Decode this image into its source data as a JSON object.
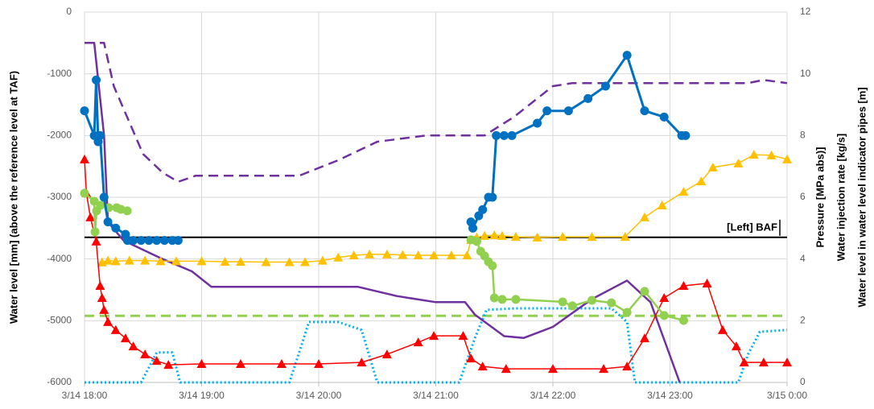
{
  "chart_data": {
    "type": "line",
    "y_label": "Water level [mm] (above the reference level at TAF)",
    "y2_labels": [
      "Pressure [MPa abs)]",
      "Water injection rate [kg/s]",
      "Water level in water level indicator pipes [m]"
    ],
    "annotations": [
      "[Left] BAF"
    ],
    "xlim": [
      0,
      360
    ],
    "xticks": [
      {
        "value": 0,
        "label": "3/14 18:00"
      },
      {
        "value": 60,
        "label": "3/14 19:00"
      },
      {
        "value": 120,
        "label": "3/14 20:00"
      },
      {
        "value": 180,
        "label": "3/14 21:00"
      },
      {
        "value": 240,
        "label": "3/14 22:00"
      },
      {
        "value": 300,
        "label": "3/14 23:00"
      },
      {
        "value": 360,
        "label": "3/15 0:00"
      }
    ],
    "ylim": [
      -6000,
      0
    ],
    "yticks": [
      -6000,
      -5000,
      -4000,
      -3000,
      -2000,
      -1000,
      0
    ],
    "y2lim": [
      0,
      12
    ],
    "y2ticks": [
      0,
      2,
      4,
      6,
      8,
      10,
      12
    ],
    "grid": true,
    "series": [
      {
        "color": "#000000",
        "axis": "y",
        "style": "solid",
        "width": 2,
        "x": [
          0,
          360
        ],
        "values": [
          -3650,
          -3650
        ]
      },
      {
        "color": "#92d050",
        "axis": "y",
        "style": "dashed",
        "width": 3,
        "x": [
          0,
          360
        ],
        "values": [
          -4920,
          -4920
        ]
      },
      {
        "color": "#00b0f0",
        "axis": "y2",
        "style": "dotted",
        "width": 3,
        "x": [
          0,
          29,
          37,
          45,
          49,
          105,
          111,
          115,
          130,
          142,
          150,
          192,
          200,
          206,
          221,
          270,
          278,
          282,
          335,
          340,
          346,
          360
        ],
        "values": [
          0,
          0,
          0.97,
          0.97,
          0,
          0,
          1.17,
          1.96,
          1.96,
          1.7,
          0,
          0,
          1.43,
          2.35,
          2.4,
          2.4,
          1.96,
          0,
          0,
          0.91,
          1.64,
          1.7
        ]
      },
      {
        "color": "#7030a0",
        "axis": "y",
        "style": "dashed",
        "width": 2.5,
        "x": [
          0,
          10,
          15,
          30,
          40,
          48,
          57,
          110,
          130,
          150,
          175,
          205,
          220,
          240,
          250,
          340,
          348,
          360
        ],
        "values": [
          -500,
          -500,
          -1200,
          -2300,
          -2600,
          -2750,
          -2650,
          -2650,
          -2400,
          -2100,
          -2000,
          -2000,
          -1700,
          -1200,
          -1150,
          -1150,
          -1100,
          -1150
        ]
      },
      {
        "color": "#7030a0",
        "axis": "y",
        "style": "solid",
        "width": 2.5,
        "x": [
          0,
          5,
          10,
          12,
          20,
          40,
          55,
          65,
          140,
          160,
          180,
          195,
          200,
          215,
          225,
          240,
          260,
          278,
          290,
          305
        ],
        "values": [
          -500,
          -500,
          -2000,
          -3400,
          -3700,
          -4000,
          -4200,
          -4450,
          -4450,
          -4600,
          -4700,
          -4700,
          -4900,
          -5250,
          -5280,
          -5100,
          -4650,
          -4350,
          -4700,
          -6000
        ]
      },
      {
        "color": "#ffc000",
        "axis": "y2",
        "style": "solid",
        "width": 1.5,
        "marker": "triangle",
        "x": [
          9,
          12,
          16,
          23,
          31,
          39,
          47,
          60,
          72,
          80,
          93,
          105,
          113,
          122,
          130,
          138,
          146,
          155,
          163,
          171,
          179,
          188,
          196,
          198,
          201,
          205,
          210,
          214,
          221,
          232,
          245,
          260,
          277,
          287,
          296,
          307,
          316,
          322,
          335,
          343,
          352,
          360
        ],
        "values": [
          3.89,
          3.95,
          3.93,
          3.95,
          3.95,
          3.93,
          3.93,
          3.93,
          3.91,
          3.91,
          3.9,
          3.9,
          3.9,
          3.95,
          4.05,
          4.12,
          4.15,
          4.15,
          4.13,
          4.12,
          4.12,
          4.12,
          4.12,
          4.62,
          4.7,
          4.75,
          4.77,
          4.75,
          4.72,
          4.7,
          4.72,
          4.72,
          4.72,
          5.35,
          5.74,
          6.18,
          6.52,
          6.97,
          7.1,
          7.38,
          7.36,
          7.23
        ]
      },
      {
        "color": "#ff0000",
        "axis": "y2",
        "style": "solid",
        "width": 1.5,
        "marker": "triangle",
        "x": [
          0,
          1,
          3,
          6,
          8,
          9,
          10,
          12,
          16,
          21,
          25,
          31,
          37,
          43,
          60,
          80,
          101,
          120,
          142,
          155,
          171,
          179,
          194,
          198,
          204,
          216,
          240,
          266,
          278,
          287,
          297,
          307,
          319,
          327,
          334,
          338,
          348,
          360
        ],
        "values": [
          7.23,
          6.13,
          5.35,
          4.57,
          3.13,
          2.74,
          2.35,
          1.96,
          1.7,
          1.43,
          1.17,
          0.91,
          0.7,
          0.57,
          0.6,
          0.6,
          0.6,
          0.6,
          0.65,
          0.91,
          1.3,
          1.51,
          1.51,
          0.78,
          0.52,
          0.44,
          0.44,
          0.44,
          0.52,
          1.43,
          2.74,
          3.13,
          3.21,
          1.7,
          1.17,
          0.65,
          0.65,
          0.65
        ]
      },
      {
        "color": "#92d050",
        "axis": "y2",
        "style": "solid",
        "width": 2.5,
        "marker": "circle",
        "x": [
          0,
          5,
          5.4,
          6.2,
          8.2,
          12.4,
          16.5,
          18.6,
          21.9,
          100,
          198,
          201,
          203,
          205,
          207,
          209,
          210,
          214,
          221,
          245,
          250,
          260,
          270,
          278,
          287,
          297,
          307
        ],
        "values": [
          6.13,
          5.87,
          4.88,
          5.56,
          5.74,
          5.66,
          5.66,
          5.61,
          5.56,
          null,
          4.62,
          4.57,
          4.25,
          4.1,
          3.91,
          3.78,
          2.74,
          2.69,
          2.69,
          2.61,
          2.48,
          2.66,
          2.58,
          2.27,
          2.95,
          2.17,
          2.01
        ]
      },
      {
        "color": "#0070c0",
        "axis": "y",
        "style": "solid",
        "width": 3,
        "marker": "circle",
        "x": [
          0,
          5,
          6,
          7,
          8,
          10,
          12,
          16,
          21,
          22,
          25,
          29,
          33,
          37,
          41,
          45,
          48,
          100,
          198,
          199,
          202,
          204,
          207,
          209,
          211,
          215,
          219,
          232,
          237,
          248,
          258,
          267,
          278,
          287,
          297,
          306,
          308
        ],
        "values": [
          -1600,
          -2000,
          -1100,
          -2100,
          -2000,
          -3000,
          -3400,
          -3500,
          -3600,
          -3700,
          -3700,
          -3700,
          -3700,
          -3700,
          -3700,
          -3700,
          -3700,
          null,
          -3400,
          -3500,
          -3300,
          -3200,
          -3000,
          -3000,
          -2000,
          -2000,
          -2000,
          -1800,
          -1600,
          -1600,
          -1400,
          -1200,
          -700,
          -1600,
          -1700,
          -2000,
          -2000
        ]
      }
    ]
  }
}
